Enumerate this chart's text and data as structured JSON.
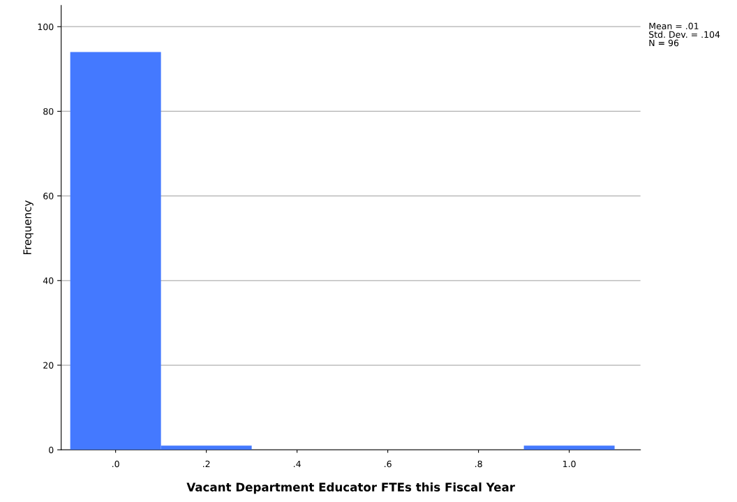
{
  "chart_data": {
    "type": "histogram",
    "xlabel": "Vacant Department Educator FTEs this Fiscal Year",
    "ylabel": "Frequency",
    "bins": [
      -0.1,
      0.1,
      0.3,
      0.5,
      0.7,
      0.9,
      1.1
    ],
    "values": [
      94,
      1,
      0,
      0,
      0,
      1
    ],
    "color": "#4479ff",
    "xlim": [
      -0.12,
      1.157
    ],
    "xticks": [
      {
        "value": 0,
        "label": ".0"
      },
      {
        "value": 0.2,
        "label": ".2"
      },
      {
        "value": 0.4,
        "label": ".4"
      },
      {
        "value": 0.6,
        "label": ".6"
      },
      {
        "value": 0.8,
        "label": ".8"
      },
      {
        "value": 1.0,
        "label": "1.0"
      }
    ],
    "ylim": [
      0,
      105
    ],
    "yticks": [
      0,
      20,
      40,
      60,
      80,
      100
    ],
    "grid": "y",
    "legend": false,
    "annotations": [
      "Mean = .01\nStd. Dev. = .104\nN = 96"
    ]
  }
}
